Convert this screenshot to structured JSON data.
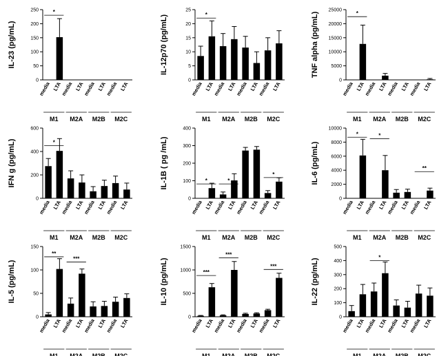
{
  "chart_data": [
    {
      "type": "bar",
      "ylabel": "IL-23 (pg/mL)",
      "ylim": [
        0,
        250
      ],
      "yticks": [
        0,
        50,
        100,
        150,
        200,
        250
      ],
      "categories": [
        "media",
        "LTA",
        "media",
        "LTA",
        "media",
        "LTA",
        "media",
        "LTA"
      ],
      "groups": [
        "M1",
        "M2A",
        "M2B",
        "M2C"
      ],
      "values": [
        0,
        152,
        0,
        0,
        0,
        0,
        0,
        0
      ],
      "errors": [
        0,
        66,
        0,
        0,
        0,
        0,
        0,
        0
      ],
      "significance": [
        {
          "from": 0,
          "to": 1,
          "y": 230,
          "label": "*"
        }
      ]
    },
    {
      "type": "bar",
      "ylabel": "IL-12p70 (pg/mL)",
      "ylim": [
        0,
        25
      ],
      "yticks": [
        0,
        5,
        10,
        15,
        20,
        25
      ],
      "categories": [
        "media",
        "LTA",
        "media",
        "LTA",
        "media",
        "LTA",
        "media",
        "LTA"
      ],
      "groups": [
        "M1",
        "M2A",
        "M2B",
        "M2C"
      ],
      "values": [
        8.5,
        15.5,
        12,
        14.5,
        11.5,
        6,
        10.5,
        13
      ],
      "errors": [
        3.5,
        5.5,
        4.5,
        4.5,
        4,
        4,
        4.5,
        4.5
      ],
      "significance": [
        {
          "from": 0,
          "to": 1,
          "y": 22,
          "label": "*"
        }
      ]
    },
    {
      "type": "bar",
      "ylabel": "TNF alpha (pg/mL)",
      "ylim": [
        0,
        25000
      ],
      "yticks": [
        0,
        5000,
        10000,
        15000,
        20000,
        25000
      ],
      "categories": [
        "media",
        "LTA",
        "media",
        "LTA",
        "media",
        "LTA",
        "media",
        "LTA"
      ],
      "groups": [
        "M1",
        "M2A",
        "M2B",
        "M2C"
      ],
      "values": [
        0,
        12800,
        0,
        1500,
        0,
        0,
        0,
        200
      ],
      "errors": [
        0,
        6700,
        0,
        800,
        0,
        0,
        0,
        300
      ],
      "significance": [
        {
          "from": 0,
          "to": 1,
          "y": 22500,
          "label": "*"
        }
      ]
    },
    {
      "type": "bar",
      "ylabel": "IFN g (pg/mL)",
      "ylim": [
        0,
        600
      ],
      "yticks": [
        0,
        200,
        400,
        600
      ],
      "categories": [
        "media",
        "LTA",
        "media",
        "LTA",
        "media",
        "LTA",
        "media",
        "LTA"
      ],
      "groups": [
        "M1",
        "M2A",
        "M2B",
        "M2C"
      ],
      "values": [
        275,
        405,
        170,
        135,
        60,
        105,
        130,
        75
      ],
      "errors": [
        65,
        105,
        65,
        65,
        40,
        50,
        60,
        55
      ],
      "significance": [
        {
          "from": 0,
          "to": 1,
          "y": 450,
          "label": "*"
        }
      ]
    },
    {
      "type": "bar",
      "ylabel": "IL-1B ( pg /mL)",
      "ylim": [
        0,
        400
      ],
      "yticks": [
        0,
        100,
        200,
        300,
        400
      ],
      "categories": [
        "media",
        "LTA",
        "media",
        "LTA",
        "media",
        "LTA",
        "media",
        "LTA"
      ],
      "groups": [
        "M1",
        "M2A",
        "M2B",
        "M2C"
      ],
      "values": [
        0,
        58,
        22,
        102,
        272,
        277,
        30,
        95
      ],
      "errors": [
        0,
        28,
        14,
        38,
        18,
        18,
        14,
        22
      ],
      "significance": [
        {
          "from": 0,
          "to": 1,
          "y": 82,
          "label": "*"
        },
        {
          "from": 2,
          "to": 3,
          "y": 82,
          "label": "*"
        },
        {
          "from": 6,
          "to": 7,
          "y": 118,
          "label": "*"
        }
      ]
    },
    {
      "type": "bar",
      "ylabel": "IL-6 (pg/mL)",
      "ylim": [
        0,
        10000
      ],
      "yticks": [
        0,
        2000,
        4000,
        6000,
        8000,
        10000
      ],
      "categories": [
        "media",
        "LTA",
        "media",
        "LTA",
        "media",
        "LTA",
        "media",
        "LTA"
      ],
      "groups": [
        "M1",
        "M2A",
        "M2B",
        "M2C"
      ],
      "values": [
        0,
        6100,
        0,
        4000,
        800,
        900,
        0,
        1100
      ],
      "errors": [
        0,
        2300,
        0,
        2100,
        450,
        400,
        0,
        350
      ],
      "significance": [
        {
          "from": 0,
          "to": 1,
          "y": 8700,
          "label": "*"
        },
        {
          "from": 2,
          "to": 3,
          "y": 8500,
          "label": "*"
        },
        {
          "from": 6,
          "to": 7,
          "y": 3800,
          "label": "**"
        }
      ]
    },
    {
      "type": "bar",
      "ylabel": "IL-5 (pg/mL)",
      "ylim": [
        0,
        150
      ],
      "yticks": [
        0,
        50,
        100,
        150
      ],
      "categories": [
        "media",
        "LTA",
        "media",
        "LTA",
        "media",
        "LTA",
        "media",
        "LTA"
      ],
      "groups": [
        "M1",
        "M2A",
        "M2B",
        "M2C"
      ],
      "values": [
        5,
        102,
        28,
        92,
        22,
        23,
        32,
        40
      ],
      "errors": [
        4,
        22,
        12,
        10,
        10,
        10,
        10,
        9
      ],
      "significance": [
        {
          "from": 0,
          "to": 1,
          "y": 128,
          "label": "**"
        },
        {
          "from": 2,
          "to": 3,
          "y": 117,
          "label": "***"
        }
      ]
    },
    {
      "type": "bar",
      "ylabel": "IL-10  (pg/mL)",
      "ylim": [
        0,
        1500
      ],
      "yticks": [
        0,
        500,
        1000,
        1500
      ],
      "categories": [
        "media",
        "LTA",
        "media",
        "LTA",
        "media",
        "LTA",
        "media",
        "LTA"
      ],
      "groups": [
        "M1",
        "M2A",
        "M2B",
        "M2C"
      ],
      "values": [
        20,
        630,
        30,
        1000,
        60,
        70,
        140,
        830
      ],
      "errors": [
        8,
        80,
        12,
        180,
        15,
        15,
        20,
        100
      ],
      "significance": [
        {
          "from": 0,
          "to": 1,
          "y": 880,
          "label": "***"
        },
        {
          "from": 2,
          "to": 3,
          "y": 1260,
          "label": "***"
        },
        {
          "from": 6,
          "to": 7,
          "y": 1010,
          "label": "***"
        }
      ]
    },
    {
      "type": "bar",
      "ylabel": "IL-22 (pg/mL)",
      "ylim": [
        0,
        500
      ],
      "yticks": [
        0,
        100,
        200,
        300,
        400,
        500
      ],
      "categories": [
        "media",
        "LTA",
        "media",
        "LTA",
        "media",
        "LTA",
        "media",
        "LTA"
      ],
      "groups": [
        "M1",
        "M2A",
        "M2B",
        "M2C"
      ],
      "values": [
        40,
        160,
        180,
        310,
        80,
        65,
        165,
        150
      ],
      "errors": [
        40,
        70,
        60,
        80,
        40,
        45,
        60,
        55
      ],
      "significance": [
        {
          "from": 2,
          "to": 3,
          "y": 400,
          "label": "*"
        }
      ]
    }
  ]
}
